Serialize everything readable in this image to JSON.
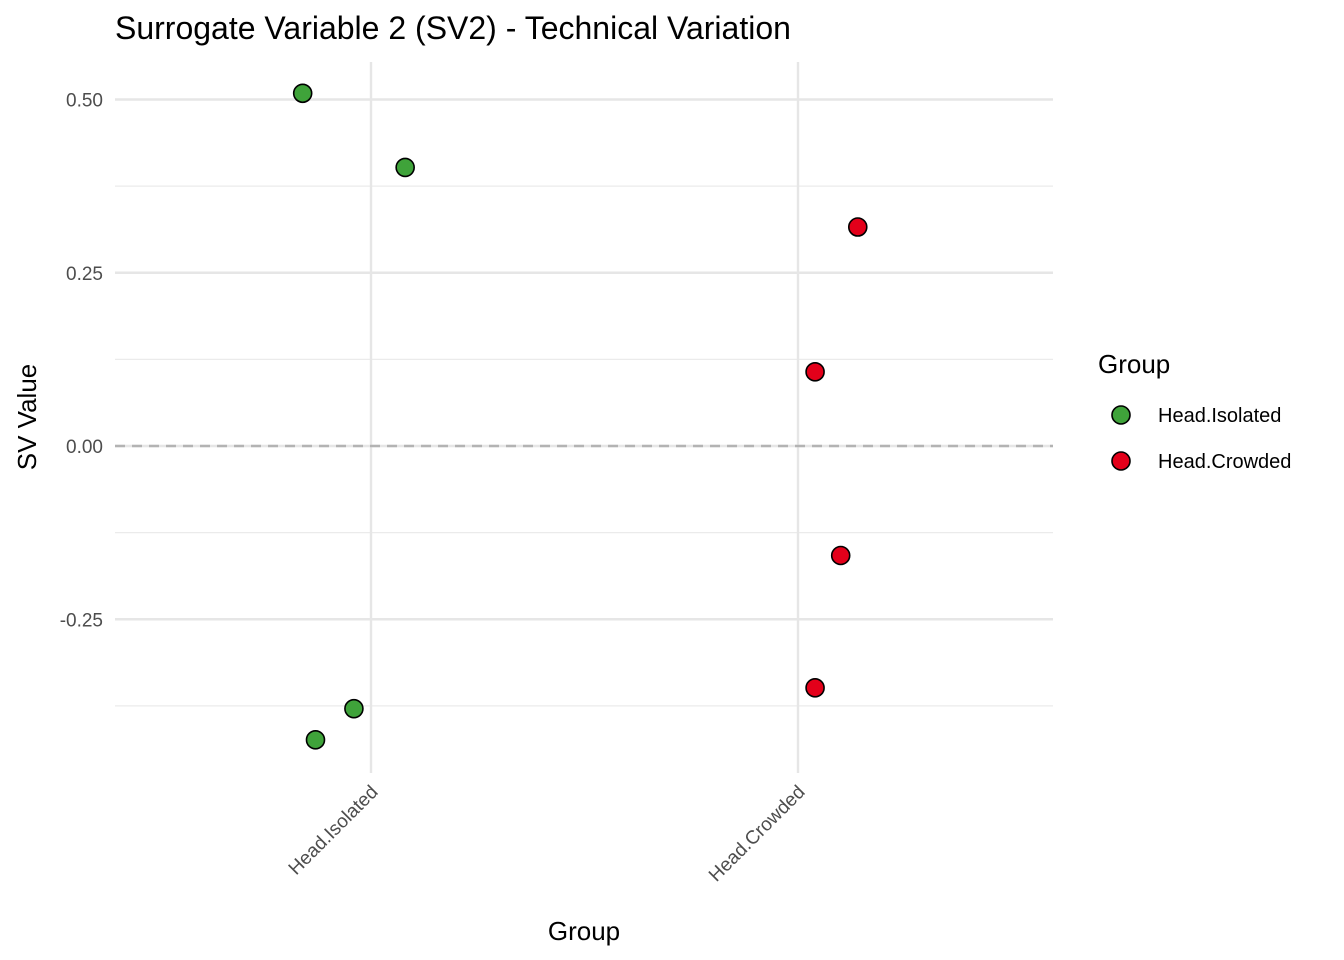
{
  "chart_data": {
    "type": "scatter",
    "title": "Surrogate Variable 2 (SV2) - Technical Variation",
    "xlabel": "Group",
    "ylabel": "SV Value",
    "categories": [
      "Head.Isolated",
      "Head.Crowded"
    ],
    "y_ticks": [
      "0.50",
      "0.25",
      "0.00",
      "-0.25"
    ],
    "y_tick_values": [
      0.5,
      0.25,
      0.0,
      -0.25
    ],
    "ylim": [
      -0.47,
      0.55
    ],
    "grid": true,
    "reference_line": {
      "y": 0.0,
      "style": "dashed"
    },
    "legend": {
      "title": "Group",
      "position": "right",
      "entries": [
        {
          "label": "Head.Isolated",
          "color": "#3fa33a"
        },
        {
          "label": "Head.Crowded",
          "color": "#e3001a"
        }
      ]
    },
    "series": [
      {
        "category": "Head.Isolated",
        "color": "#3fa33a",
        "points": [
          {
            "x_jitter": -0.16,
            "y": 0.509
          },
          {
            "x_jitter": 0.08,
            "y": 0.402
          },
          {
            "x_jitter": -0.04,
            "y": -0.379
          },
          {
            "x_jitter": -0.13,
            "y": -0.424
          }
        ]
      },
      {
        "category": "Head.Crowded",
        "color": "#e3001a",
        "points": [
          {
            "x_jitter": 0.14,
            "y": 0.316
          },
          {
            "x_jitter": 0.04,
            "y": 0.107
          },
          {
            "x_jitter": 0.1,
            "y": -0.158
          },
          {
            "x_jitter": 0.04,
            "y": -0.349
          }
        ]
      }
    ]
  }
}
